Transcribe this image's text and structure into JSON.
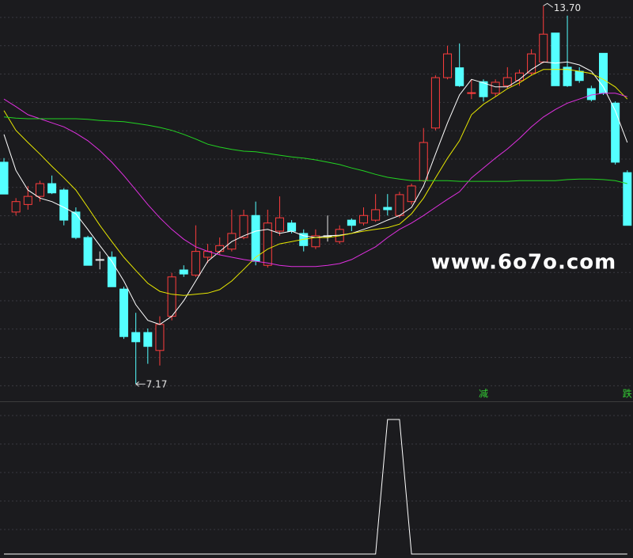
{
  "chart_data": {
    "type": "candlestick",
    "categories": [
      null,
      null,
      null,
      null,
      null,
      null,
      null,
      null,
      null,
      null,
      null,
      null,
      null,
      null,
      null,
      null,
      null,
      null,
      null,
      null,
      null,
      null,
      null,
      null,
      null,
      null,
      null,
      null,
      null,
      null,
      null,
      null,
      null,
      null,
      null,
      null,
      null,
      null,
      null,
      null,
      null,
      null,
      null,
      null,
      null,
      null,
      null,
      null,
      null,
      null,
      null,
      null,
      null
    ],
    "open": [
      11.0,
      10.14,
      10.27,
      10.41,
      10.63,
      10.52,
      10.14,
      9.7,
      9.32,
      9.36,
      8.81,
      8.06,
      8.06,
      7.75,
      8.34,
      9.14,
      9.05,
      9.36,
      9.46,
      9.5,
      9.7,
      10.08,
      9.22,
      9.81,
      9.95,
      9.77,
      9.54,
      9.73,
      9.63,
      10.0,
      9.95,
      10.0,
      10.22,
      10.08,
      10.32,
      10.68,
      11.59,
      12.46,
      12.63,
      12.19,
      12.39,
      12.19,
      12.32,
      12.41,
      12.54,
      12.73,
      13.23,
      12.64,
      12.57,
      12.27,
      12.88,
      12.02,
      10.82
    ],
    "high": [
      11.07,
      10.38,
      10.59,
      10.68,
      10.77,
      10.55,
      10.22,
      9.73,
      9.46,
      9.46,
      8.85,
      8.4,
      8.13,
      8.34,
      9.09,
      9.22,
      9.91,
      9.59,
      9.7,
      10.18,
      10.18,
      10.32,
      10.18,
      10.41,
      10.0,
      9.84,
      9.84,
      10.08,
      9.91,
      10.03,
      10.22,
      10.45,
      10.45,
      10.49,
      10.63,
      11.59,
      12.5,
      13.01,
      13.05,
      12.43,
      12.43,
      12.43,
      12.64,
      12.6,
      12.95,
      13.7,
      13.23,
      13.53,
      12.64,
      12.32,
      12.88,
      12.05,
      10.86
    ],
    "low": [
      10.45,
      10.08,
      10.18,
      10.32,
      10.45,
      9.91,
      9.67,
      9.22,
      9.15,
      8.85,
      7.95,
      7.17,
      7.52,
      7.49,
      8.27,
      9.02,
      9.02,
      9.26,
      9.4,
      9.46,
      9.67,
      9.22,
      9.18,
      9.73,
      9.77,
      9.46,
      9.5,
      9.63,
      9.59,
      9.81,
      9.91,
      9.97,
      10.08,
      10.04,
      10.27,
      10.66,
      11.55,
      12.43,
      12.3,
      12.09,
      12.05,
      12.13,
      12.27,
      12.32,
      12.5,
      12.71,
      12.32,
      12.3,
      12.37,
      12.05,
      12.16,
      10.96,
      9.91
    ],
    "close": [
      10.45,
      10.32,
      10.41,
      10.63,
      10.47,
      10.0,
      9.7,
      9.22,
      9.32,
      8.85,
      7.99,
      7.9,
      7.82,
      8.2,
      9.02,
      9.07,
      9.46,
      9.46,
      9.56,
      9.77,
      10.08,
      9.29,
      9.95,
      10.04,
      9.81,
      9.56,
      9.73,
      9.73,
      9.84,
      9.91,
      10.08,
      10.18,
      10.18,
      10.44,
      10.59,
      11.34,
      12.46,
      12.87,
      12.32,
      12.2,
      12.13,
      12.38,
      12.46,
      12.54,
      12.87,
      13.21,
      12.32,
      12.32,
      12.41,
      12.08,
      12.19,
      11.0,
      9.91
    ],
    "up_color": "#ff3d3d",
    "down_color": "#54ffff",
    "flat_color": "#e8e8e8",
    "ylim": [
      6.9,
      13.8
    ],
    "grid": true,
    "series": [
      {
        "color": "#ffffff",
        "values": [
          11.48,
          10.86,
          10.52,
          10.38,
          10.32,
          10.22,
          10.11,
          9.84,
          9.56,
          9.29,
          8.95,
          8.54,
          8.27,
          8.2,
          8.34,
          8.61,
          8.95,
          9.29,
          9.46,
          9.63,
          9.73,
          9.81,
          9.84,
          9.77,
          9.81,
          9.73,
          9.7,
          9.73,
          9.74,
          9.77,
          9.84,
          9.91,
          10.0,
          10.08,
          10.22,
          10.59,
          11.14,
          11.68,
          12.16,
          12.43,
          12.37,
          12.3,
          12.3,
          12.43,
          12.6,
          12.73,
          12.71,
          12.73,
          12.68,
          12.57,
          12.3,
          11.89,
          11.34
        ]
      },
      {
        "color": "#e8e800",
        "values": [
          11.89,
          11.55,
          11.34,
          11.14,
          10.93,
          10.73,
          10.52,
          10.22,
          9.91,
          9.63,
          9.36,
          9.13,
          8.91,
          8.77,
          8.72,
          8.7,
          8.72,
          8.74,
          8.8,
          8.95,
          9.15,
          9.36,
          9.5,
          9.59,
          9.63,
          9.67,
          9.7,
          9.7,
          9.73,
          9.77,
          9.81,
          9.84,
          9.87,
          9.93,
          10.11,
          10.38,
          10.73,
          11.07,
          11.37,
          11.82,
          12.0,
          12.13,
          12.27,
          12.37,
          12.5,
          12.6,
          12.6,
          12.6,
          12.57,
          12.53,
          12.43,
          12.3,
          12.09
        ]
      },
      {
        "color": "#e030e0",
        "values": [
          12.09,
          11.96,
          11.82,
          11.75,
          11.68,
          11.61,
          11.5,
          11.37,
          11.2,
          11.0,
          10.77,
          10.52,
          10.27,
          10.04,
          9.84,
          9.67,
          9.54,
          9.46,
          9.4,
          9.36,
          9.32,
          9.29,
          9.26,
          9.22,
          9.2,
          9.2,
          9.2,
          9.22,
          9.25,
          9.32,
          9.43,
          9.54,
          9.7,
          9.84,
          9.95,
          10.08,
          10.22,
          10.36,
          10.49,
          10.73,
          10.9,
          11.07,
          11.23,
          11.41,
          11.61,
          11.78,
          11.91,
          12.02,
          12.09,
          12.16,
          12.19,
          12.19,
          12.13
        ]
      },
      {
        "color": "#22d422",
        "values": [
          11.78,
          11.76,
          11.75,
          11.75,
          11.75,
          11.75,
          11.75,
          11.74,
          11.72,
          11.71,
          11.7,
          11.67,
          11.64,
          11.6,
          11.55,
          11.48,
          11.4,
          11.31,
          11.26,
          11.22,
          11.19,
          11.18,
          11.15,
          11.12,
          11.09,
          11.07,
          11.04,
          11.0,
          10.96,
          10.9,
          10.85,
          10.79,
          10.74,
          10.71,
          10.68,
          10.68,
          10.68,
          10.68,
          10.67,
          10.67,
          10.67,
          10.67,
          10.67,
          10.68,
          10.68,
          10.68,
          10.68,
          10.7,
          10.71,
          10.71,
          10.7,
          10.68,
          10.63
        ]
      }
    ],
    "high_label": "13.70",
    "low_label": "7.17",
    "annotations": [
      {
        "text": "减",
        "index": 40
      },
      {
        "text": "跌",
        "index": 52
      }
    ],
    "annotation_color": "#33cc33",
    "watermark": "www.6o7o.com",
    "indicator": {
      "color": "#ffffff",
      "values": [
        0,
        0,
        0,
        0,
        0,
        0,
        0,
        0,
        0,
        0,
        0,
        0,
        0,
        0,
        0,
        0,
        0,
        0,
        0,
        0,
        0,
        0,
        0,
        0,
        0,
        0,
        0,
        0,
        0,
        0,
        0,
        0,
        1,
        1,
        0,
        0,
        0,
        0,
        0,
        0,
        0,
        0,
        0,
        0,
        0,
        0,
        0,
        0,
        0,
        0,
        0,
        0,
        0
      ]
    }
  }
}
